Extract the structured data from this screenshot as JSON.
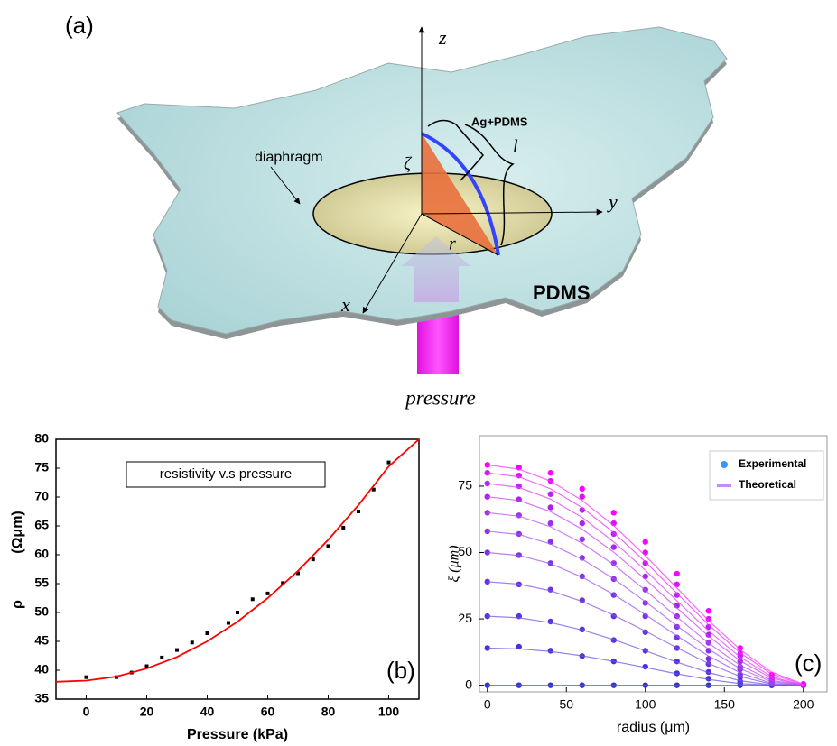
{
  "figure_a": {
    "panel_label": "(a)",
    "z_axis": "z",
    "y_axis": "y",
    "x_axis": "x",
    "zeta": "ζ",
    "arc_length": "l",
    "radius": "r",
    "diaphragm": "diaphragm",
    "electrode": "Ag+PDMS",
    "substrate": "PDMS",
    "pressure": "pressure"
  },
  "chart_data": [
    {
      "type": "scatter",
      "panel_label": "(b)",
      "xlabel": "Pressure (kPa)",
      "ylabel": "ρ",
      "ylabel_unit": "(Ωμm)",
      "xlim": [
        -10,
        110
      ],
      "ylim": [
        35,
        80
      ],
      "xticks": [
        0,
        20,
        40,
        60,
        80,
        100
      ],
      "yticks": [
        35,
        40,
        45,
        50,
        55,
        60,
        65,
        70,
        75,
        80
      ],
      "grid": false,
      "legend": "upper center",
      "series": [
        {
          "name": "resistivity v.s pressure",
          "color": "#000000",
          "mode": "markers",
          "x": [
            0,
            10,
            15,
            20,
            25,
            30,
            35,
            40,
            47,
            50,
            55,
            60,
            65,
            70,
            75,
            80,
            85,
            90,
            95,
            100
          ],
          "values": [
            38.8,
            38.8,
            39.6,
            40.7,
            42.2,
            43.5,
            44.8,
            46.4,
            48.2,
            50,
            52.3,
            53.3,
            55.1,
            56.8,
            59.2,
            61.5,
            64.7,
            67.5,
            71.3,
            76
          ]
        },
        {
          "color": "#ff0000",
          "mode": "line",
          "x": [
            -10,
            0,
            10,
            20,
            30,
            40,
            50,
            60,
            70,
            80,
            90,
            100,
            110
          ],
          "values": [
            38,
            38.2,
            38.9,
            40.3,
            42.3,
            45,
            48.4,
            52.5,
            57.2,
            62.6,
            68.6,
            75.3,
            80
          ]
        }
      ]
    },
    {
      "type": "scatter",
      "panel_label": "(c)",
      "xlabel": "radius (μm)",
      "ylabel": "ξ (μm)",
      "xlim": [
        -5,
        215
      ],
      "ylim": [
        -2.5,
        94
      ],
      "xticks": [
        0,
        50,
        100,
        150,
        200
      ],
      "yticks": [
        0,
        25,
        50,
        75
      ],
      "grid": false,
      "legend": "upper right",
      "x": [
        0,
        20,
        40,
        60,
        80,
        100,
        120,
        140,
        160,
        180,
        200
      ],
      "series": [
        {
          "name": "Experimental",
          "color": "#3399ff",
          "mode": "markers",
          "curve_colors": [
            "#3333cc",
            "#4433d6",
            "#5533dd",
            "#6633e0",
            "#7733e6",
            "#8833ea",
            "#9933ee",
            "#aa22f0",
            "#bb22f4",
            "#dd11f8",
            "#ff00ff"
          ],
          "curves": [
            [
              0,
              0,
              0,
              0,
              0,
              0,
              0,
              0,
              0,
              0,
              0
            ],
            [
              14,
              14.5,
              13,
              11,
              9,
              7,
              4.5,
              2.5,
              0.8,
              0,
              0
            ],
            [
              26,
              26,
              24,
              21,
              17,
              13,
              9,
              5,
              1.5,
              0,
              0
            ],
            [
              39,
              38,
              36,
              32,
              26,
              20,
              14,
              8,
              3,
              0.2,
              0
            ],
            [
              50,
              49,
              46,
              41,
              34,
              26,
              18,
              10,
              4,
              0.5,
              0
            ],
            [
              58,
              57,
              54,
              48,
              40,
              31,
              22,
              13,
              6,
              1,
              0
            ],
            [
              65,
              64,
              61,
              55,
              46,
              36,
              26,
              16,
              7,
              1.5,
              0
            ],
            [
              71,
              70,
              67,
              61,
              52,
              41,
              30,
              19,
              9,
              2,
              0
            ],
            [
              76,
              75,
              72,
              66,
              57,
              46,
              34,
              22,
              11,
              2.5,
              0
            ],
            [
              80,
              79,
              77,
              71,
              61,
              50,
              38,
              25,
              12,
              3,
              0.3
            ],
            [
              83,
              82,
              80,
              74,
              65,
              54,
              42,
              28,
              14,
              4,
              0.5
            ]
          ]
        },
        {
          "name": "Theoretical",
          "color": "#cc88ff",
          "mode": "line",
          "curve_colors": [
            "#5555dd",
            "#6655e0",
            "#7755e4",
            "#8855e8",
            "#9955ec",
            "#aa55ee",
            "#bb55f0",
            "#cc44f2",
            "#dd44f6",
            "#ee33fa",
            "#ff33ff"
          ],
          "curves": [
            [
              0,
              0,
              0,
              0,
              0,
              0,
              0,
              0,
              0,
              0,
              0
            ],
            [
              14,
              13.7,
              12.7,
              11.1,
              9,
              6.7,
              4.3,
              2.2,
              0.6,
              0,
              0
            ],
            [
              26,
              25.4,
              23.6,
              20.8,
              17.2,
              13,
              8.7,
              4.8,
              1.7,
              0.1,
              0
            ],
            [
              39,
              38.1,
              35.6,
              31.6,
              26.4,
              20.4,
              14.1,
              8.2,
              3.3,
              0.4,
              0
            ],
            [
              50,
              48.9,
              45.8,
              40.7,
              34.2,
              26.6,
              18.6,
              11,
              4.7,
              0.7,
              0
            ],
            [
              58,
              56.8,
              53.2,
              47.5,
              40.1,
              31.5,
              22.4,
              13.6,
              6.2,
              1.3,
              0
            ],
            [
              65,
              63.7,
              59.7,
              53.5,
              45.4,
              35.8,
              25.7,
              15.9,
              7.5,
              1.8,
              0
            ],
            [
              71,
              69.6,
              65.4,
              58.8,
              50.1,
              39.9,
              29.1,
              18.5,
              9.2,
              2.6,
              0
            ],
            [
              76,
              74.5,
              70.1,
              63.2,
              54,
              43.3,
              31.8,
              20.5,
              10.6,
              3.2,
              0
            ],
            [
              80,
              78.5,
              74,
              66.9,
              57.5,
              46.5,
              34.6,
              22.8,
              12.2,
              4.2,
              0.2
            ],
            [
              83,
              81.4,
              76.9,
              69.6,
              60.1,
              48.8,
              36.6,
              24.4,
              13.4,
              4.9,
              0.4
            ]
          ]
        }
      ]
    }
  ]
}
